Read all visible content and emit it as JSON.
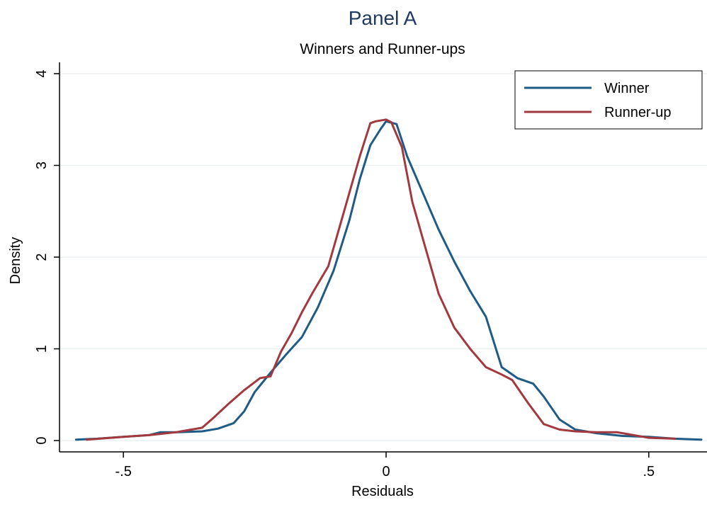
{
  "chart_data": {
    "type": "line",
    "title": "Panel A",
    "subtitle": "Winners and Runner-ups",
    "xlabel": "Residuals",
    "ylabel": "Density",
    "xlim": [
      -0.6,
      0.6
    ],
    "ylim": [
      0,
      4
    ],
    "xticks": [
      -0.5,
      0,
      0.5
    ],
    "xtick_labels": [
      "-.5",
      "0",
      ".5"
    ],
    "yticks": [
      0,
      1,
      2,
      3,
      4
    ],
    "ytick_labels": [
      "0",
      "1",
      "2",
      "3",
      "4"
    ],
    "grid": true,
    "legend_position": "top-right",
    "series": [
      {
        "name": "Winner",
        "color": "#1f5b85",
        "x": [
          -0.59,
          -0.55,
          -0.5,
          -0.45,
          -0.43,
          -0.4,
          -0.35,
          -0.32,
          -0.29,
          -0.27,
          -0.25,
          -0.22,
          -0.19,
          -0.16,
          -0.13,
          -0.1,
          -0.07,
          -0.05,
          -0.03,
          -0.01,
          0.0,
          0.02,
          0.04,
          0.07,
          0.1,
          0.13,
          0.16,
          0.19,
          0.22,
          0.25,
          0.28,
          0.3,
          0.33,
          0.36,
          0.4,
          0.45,
          0.5,
          0.55,
          0.6
        ],
        "y": [
          0.01,
          0.02,
          0.04,
          0.06,
          0.09,
          0.09,
          0.1,
          0.13,
          0.19,
          0.32,
          0.53,
          0.74,
          0.94,
          1.13,
          1.45,
          1.85,
          2.4,
          2.85,
          3.22,
          3.4,
          3.48,
          3.45,
          3.1,
          2.7,
          2.3,
          1.95,
          1.63,
          1.35,
          0.8,
          0.68,
          0.62,
          0.48,
          0.23,
          0.12,
          0.08,
          0.05,
          0.04,
          0.02,
          0.01
        ]
      },
      {
        "name": "Runner-up",
        "color": "#a2393f",
        "x": [
          -0.57,
          -0.5,
          -0.45,
          -0.4,
          -0.35,
          -0.33,
          -0.3,
          -0.27,
          -0.24,
          -0.22,
          -0.2,
          -0.18,
          -0.16,
          -0.14,
          -0.11,
          -0.08,
          -0.05,
          -0.03,
          -0.02,
          0.0,
          0.01,
          0.03,
          0.05,
          0.08,
          0.1,
          0.13,
          0.16,
          0.19,
          0.22,
          0.24,
          0.27,
          0.3,
          0.33,
          0.36,
          0.4,
          0.44,
          0.5,
          0.55
        ],
        "y": [
          0.01,
          0.04,
          0.06,
          0.09,
          0.14,
          0.24,
          0.4,
          0.55,
          0.68,
          0.7,
          0.97,
          1.17,
          1.4,
          1.61,
          1.9,
          2.5,
          3.1,
          3.46,
          3.48,
          3.5,
          3.47,
          3.2,
          2.6,
          2.0,
          1.6,
          1.23,
          1.0,
          0.8,
          0.72,
          0.66,
          0.41,
          0.18,
          0.12,
          0.1,
          0.09,
          0.09,
          0.03,
          0.02
        ]
      }
    ]
  }
}
